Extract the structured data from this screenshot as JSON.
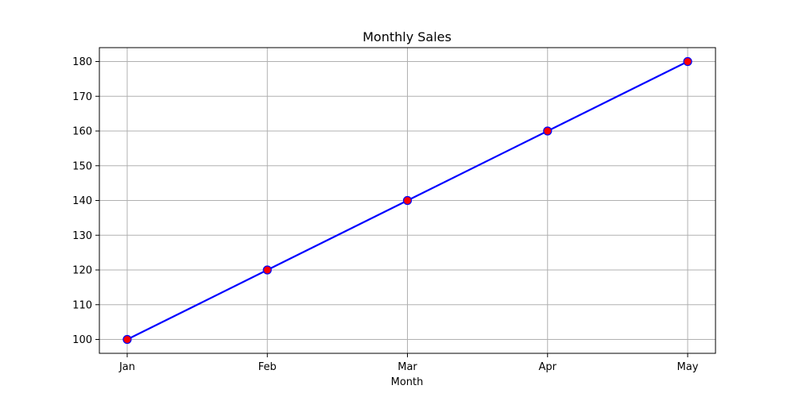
{
  "chart_data": {
    "type": "line",
    "title": "Monthly Sales",
    "xlabel": "Month",
    "ylabel": "",
    "categories": [
      "Jan",
      "Feb",
      "Mar",
      "Apr",
      "May"
    ],
    "series": [
      {
        "values": [
          100,
          120,
          140,
          160,
          180
        ],
        "line_color": "#0000ff",
        "marker_color": "#ff0000",
        "marker_edge_color": "#0000ff"
      }
    ],
    "ylim": [
      96,
      184
    ],
    "yticks": [
      100,
      110,
      120,
      130,
      140,
      150,
      160,
      170,
      180
    ],
    "grid": true
  }
}
